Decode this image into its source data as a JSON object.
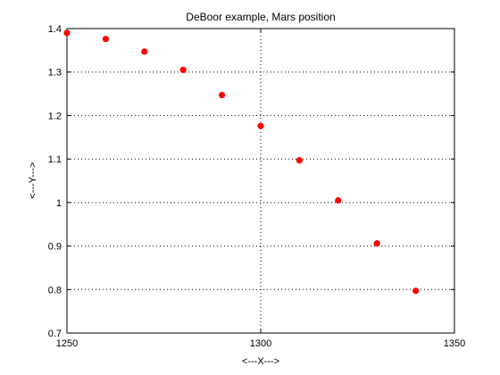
{
  "chart_data": {
    "type": "scatter",
    "title": "DeBoor example, Mars position",
    "xlabel": "<---X--->",
    "ylabel": "<---Y--->",
    "xlim": [
      1250,
      1350
    ],
    "ylim": [
      0.7,
      1.4
    ],
    "xticks": [
      1250,
      1300,
      1350
    ],
    "xtick_labels": [
      "1250",
      "1300",
      "1350"
    ],
    "yticks": [
      0.7,
      0.8,
      0.9,
      1.0,
      1.1,
      1.2,
      1.3,
      1.4
    ],
    "ytick_labels": [
      "0.7",
      "0.8",
      "0.9",
      "1",
      "1.1",
      "1.2",
      "1.3",
      "1.4"
    ],
    "grid": true,
    "marker_color": "#ff0000",
    "x": [
      1250,
      1260,
      1270,
      1280,
      1290,
      1300,
      1310,
      1320,
      1330,
      1340
    ],
    "y": [
      1.39,
      1.376,
      1.347,
      1.305,
      1.247,
      1.176,
      1.097,
      1.005,
      0.906,
      0.797
    ]
  }
}
